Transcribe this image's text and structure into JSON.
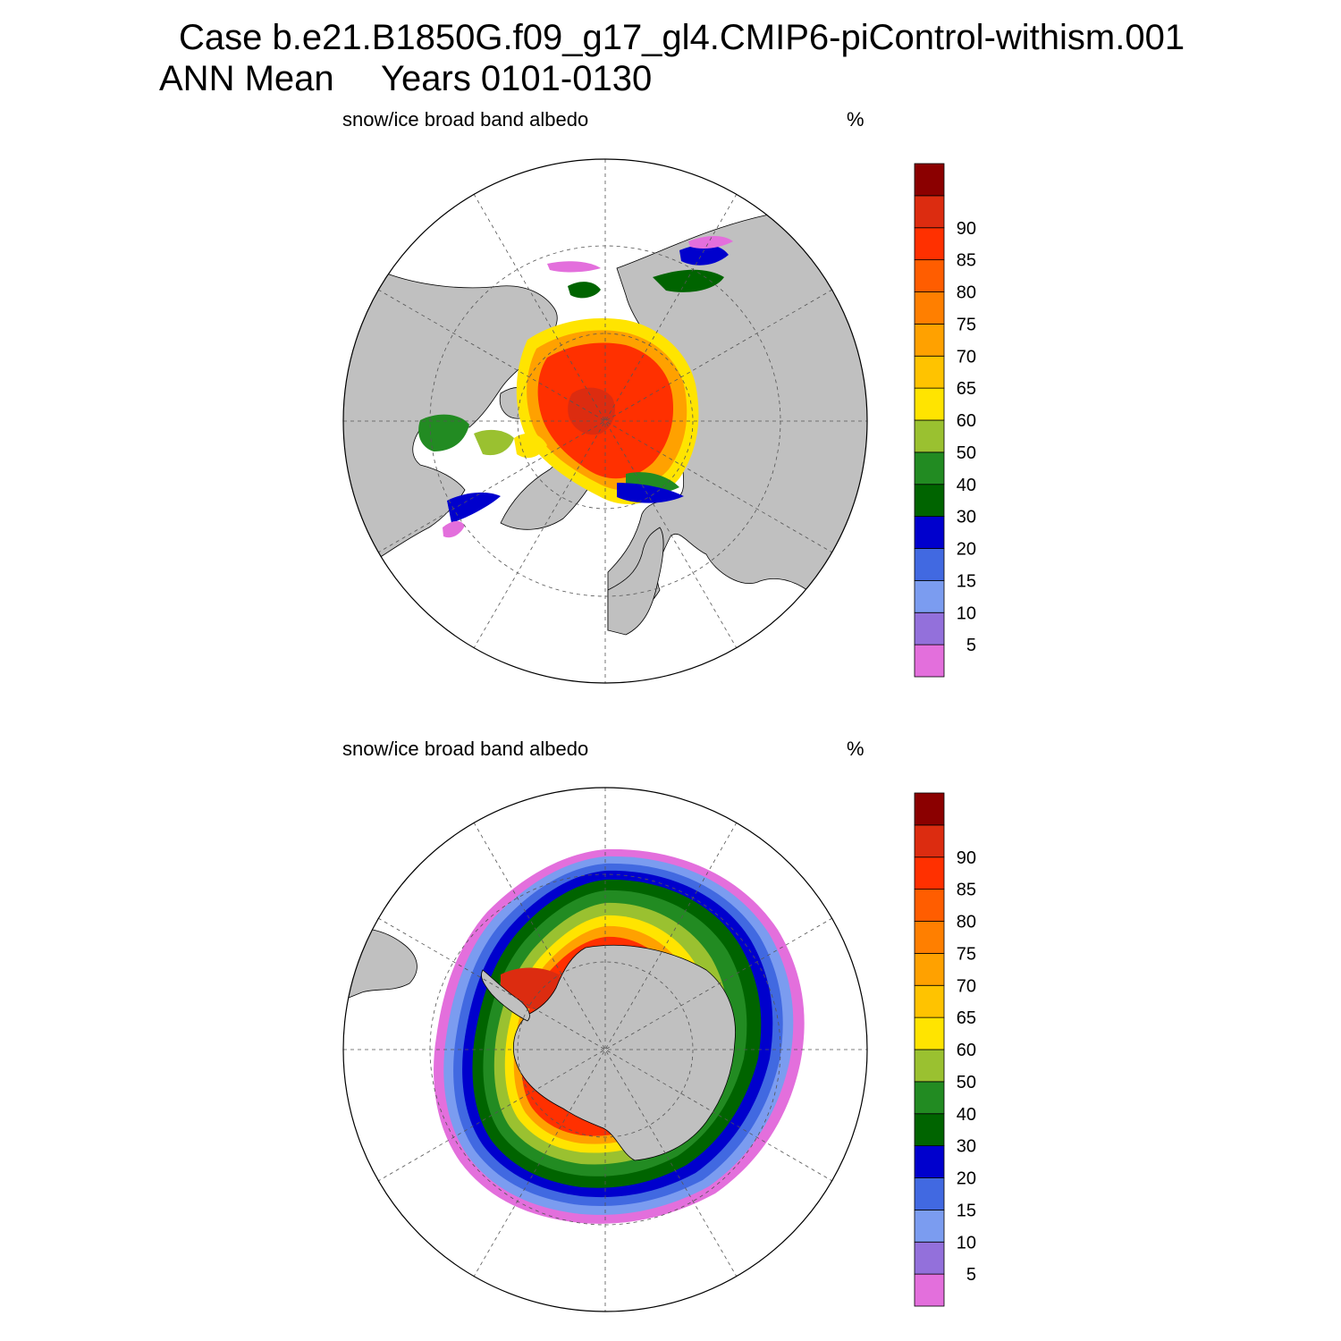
{
  "figure": {
    "case_title": "Case b.e21.B1850G.f09_g17_gl4.CMIP6-piControl-withism.001",
    "season_label": "ANN Mean",
    "years_label": "Years 0101-0130"
  },
  "panels": [
    {
      "id": "nh",
      "hemisphere": "north",
      "variable_label": "snow/ice broad band albedo",
      "units_label": "%"
    },
    {
      "id": "sh",
      "hemisphere": "south",
      "variable_label": "snow/ice broad band albedo",
      "units_label": "%"
    }
  ],
  "colorbar": {
    "colors": [
      "#e36fdc",
      "#9370db",
      "#7b9cf0",
      "#4169e1",
      "#0000cd",
      "#006400",
      "#228b22",
      "#9ac130",
      "#ffe400",
      "#ffc300",
      "#ffa100",
      "#ff7f00",
      "#ff5d00",
      "#ff3000",
      "#dc2c10",
      "#8b0000"
    ],
    "tick_labels": [
      "5",
      "10",
      "15",
      "20",
      "30",
      "40",
      "50",
      "60",
      "65",
      "70",
      "75",
      "80",
      "85",
      "90"
    ]
  },
  "map_colors": {
    "land": "#c0c0c0",
    "ocean": "#ffffff",
    "grid": "#555555"
  }
}
